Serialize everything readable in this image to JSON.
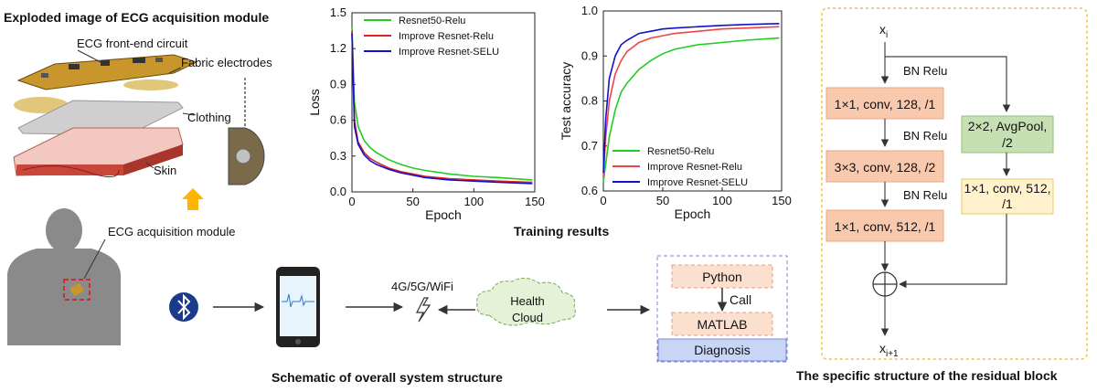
{
  "panels": {
    "exploded_title": "Exploded image of ECG acquisition module",
    "training_title": "Training results",
    "system_title": "Schematic of overall system structure",
    "residual_title": "The specific structure of the residual block"
  },
  "exploded": {
    "front_end": "ECG front-end circuit",
    "electrodes": "Fabric electrodes",
    "clothing": "Clothing",
    "skin": "Skin",
    "module": "ECG acquisition module"
  },
  "system": {
    "network": "4G/5G/WiFi",
    "cloud": "Health\nCloud",
    "python": "Python",
    "call": "Call",
    "matlab": "MATLAB",
    "diagnosis": "Diagnosis"
  },
  "residual": {
    "input": "x",
    "input_sub": "i",
    "output": "x",
    "output_sub": "i+1",
    "bn1": "BN Relu",
    "bn2": "BN Relu",
    "bn3": "BN Relu",
    "conv1": "1×1, conv, 128, /1",
    "conv2": "3×3, conv, 128, /2",
    "conv3": "1×1, conv, 512, /1",
    "pool": "2×2, AvgPool, /2",
    "shortcut_conv": "1×1, conv, 512, /1",
    "colors": {
      "conv": "#f9c9ad",
      "pool": "#c6e0b4",
      "shortcut": "#fff2cc",
      "border": "#f0c040"
    }
  },
  "chart_data": [
    {
      "type": "line",
      "title": "",
      "xlabel": "Epoch",
      "ylabel": "Loss",
      "xlim": [
        0,
        150
      ],
      "ylim": [
        0,
        1.5
      ],
      "xticks": [
        "0",
        "50",
        "100",
        "150"
      ],
      "yticks": [
        "0.0",
        "0.3",
        "0.6",
        "0.9",
        "1.2",
        "1.5"
      ],
      "legend_position": "top-right",
      "series": [
        {
          "name": "Resnet50-Relu",
          "color": "#22cc22",
          "x": [
            0,
            2,
            5,
            10,
            15,
            20,
            30,
            40,
            50,
            60,
            80,
            100,
            120,
            148
          ],
          "y": [
            1.38,
            0.75,
            0.55,
            0.43,
            0.37,
            0.33,
            0.27,
            0.23,
            0.2,
            0.18,
            0.15,
            0.13,
            0.12,
            0.1
          ]
        },
        {
          "name": "Improve Resnet-Relu",
          "color": "#dd2222",
          "x": [
            0,
            2,
            5,
            10,
            15,
            20,
            30,
            40,
            50,
            60,
            80,
            100,
            120,
            148
          ],
          "y": [
            1.35,
            0.6,
            0.42,
            0.33,
            0.28,
            0.25,
            0.2,
            0.17,
            0.15,
            0.13,
            0.11,
            0.1,
            0.09,
            0.08
          ]
        },
        {
          "name": "Improve Resnet-SELU",
          "color": "#1111cc",
          "x": [
            0,
            2,
            5,
            10,
            15,
            20,
            30,
            40,
            50,
            60,
            80,
            100,
            120,
            148
          ],
          "y": [
            1.33,
            0.55,
            0.4,
            0.31,
            0.26,
            0.23,
            0.19,
            0.16,
            0.14,
            0.12,
            0.1,
            0.09,
            0.08,
            0.07
          ]
        }
      ]
    },
    {
      "type": "line",
      "title": "",
      "xlabel": "Epoch",
      "ylabel": "Test accuracy",
      "xlim": [
        0,
        150
      ],
      "ylim": [
        0.6,
        1.0
      ],
      "xticks": [
        "0",
        "50",
        "100",
        "150"
      ],
      "yticks": [
        "0.6",
        "0.7",
        "0.8",
        "0.9",
        "1.0"
      ],
      "legend_position": "bottom-right",
      "series": [
        {
          "name": "Resnet50-Relu",
          "color": "#22cc22",
          "x": [
            0,
            2,
            5,
            10,
            15,
            20,
            30,
            40,
            50,
            60,
            80,
            100,
            120,
            148
          ],
          "y": [
            0.62,
            0.66,
            0.72,
            0.78,
            0.82,
            0.84,
            0.87,
            0.89,
            0.905,
            0.915,
            0.925,
            0.93,
            0.935,
            0.94
          ]
        },
        {
          "name": "Improve Resnet-Relu",
          "color": "#ee4444",
          "x": [
            0,
            2,
            5,
            10,
            15,
            20,
            30,
            40,
            50,
            60,
            80,
            100,
            120,
            148
          ],
          "y": [
            0.63,
            0.72,
            0.8,
            0.86,
            0.89,
            0.91,
            0.93,
            0.94,
            0.945,
            0.95,
            0.955,
            0.96,
            0.962,
            0.965
          ]
        },
        {
          "name": "Improve Resnet-SELU",
          "color": "#1111cc",
          "x": [
            0,
            2,
            5,
            10,
            15,
            20,
            30,
            40,
            50,
            60,
            80,
            100,
            120,
            148
          ],
          "y": [
            0.64,
            0.76,
            0.85,
            0.9,
            0.925,
            0.935,
            0.95,
            0.955,
            0.96,
            0.962,
            0.965,
            0.968,
            0.97,
            0.972
          ]
        }
      ]
    }
  ]
}
